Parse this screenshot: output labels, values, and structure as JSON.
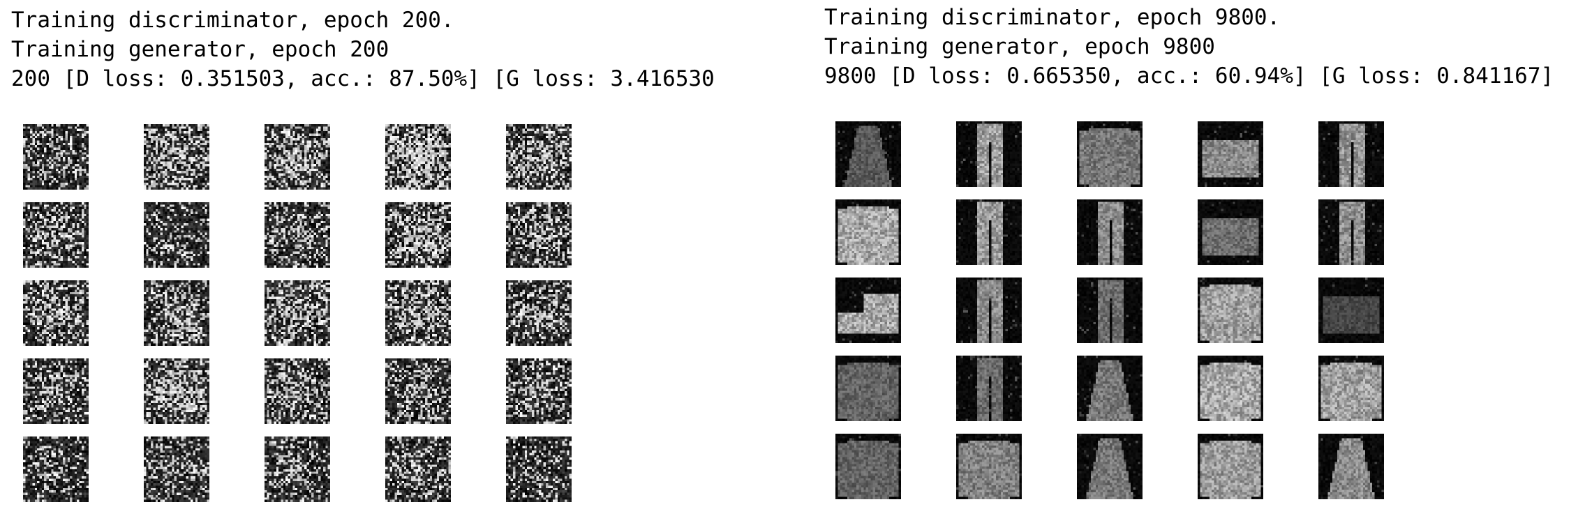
{
  "panels": [
    {
      "log_lines": [
        "Training discriminator, epoch 200.",
        "Training generator, epoch 200",
        "200 [D loss: 0.351503, acc.: 87.50%] [G loss: 3.416530"
      ],
      "grid": {
        "rows": 5,
        "cols": 5,
        "colormap": [
          "#000000",
          "#ffffff"
        ],
        "samples": [
          {
            "kind": "noise",
            "brightness": 0.35
          },
          {
            "kind": "noise",
            "brightness": 0.55
          },
          {
            "kind": "noise",
            "brightness": 0.5
          },
          {
            "kind": "noise",
            "brightness": 0.72
          },
          {
            "kind": "noise",
            "brightness": 0.5
          },
          {
            "kind": "noise",
            "brightness": 0.45
          },
          {
            "kind": "noise",
            "brightness": 0.3
          },
          {
            "kind": "noise",
            "brightness": 0.45
          },
          {
            "kind": "noise",
            "brightness": 0.55
          },
          {
            "kind": "noise",
            "brightness": 0.42
          },
          {
            "kind": "noise",
            "brightness": 0.48
          },
          {
            "kind": "noise",
            "brightness": 0.45
          },
          {
            "kind": "noise",
            "brightness": 0.5
          },
          {
            "kind": "noise",
            "brightness": 0.55
          },
          {
            "kind": "noise",
            "brightness": 0.42
          },
          {
            "kind": "noise",
            "brightness": 0.38
          },
          {
            "kind": "noise",
            "brightness": 0.62
          },
          {
            "kind": "noise",
            "brightness": 0.5
          },
          {
            "kind": "noise",
            "brightness": 0.4
          },
          {
            "kind": "noise",
            "brightness": 0.4
          },
          {
            "kind": "noise",
            "brightness": 0.3
          },
          {
            "kind": "noise",
            "brightness": 0.35
          },
          {
            "kind": "noise",
            "brightness": 0.4
          },
          {
            "kind": "noise",
            "brightness": 0.38
          },
          {
            "kind": "noise",
            "brightness": 0.32
          }
        ]
      }
    },
    {
      "log_lines": [
        "Training discriminator, epoch 9800.",
        "Training generator, epoch 9800",
        "9800 [D loss: 0.665350, acc.: 60.94%] [G loss: 0.841167]"
      ],
      "grid": {
        "rows": 5,
        "cols": 5,
        "colormap": [
          "#000000",
          "#ffffff"
        ],
        "samples": [
          {
            "kind": "dress",
            "brightness": 0.45
          },
          {
            "kind": "trouser",
            "brightness": 0.8
          },
          {
            "kind": "shirt",
            "brightness": 0.6
          },
          {
            "kind": "bag",
            "brightness": 0.7
          },
          {
            "kind": "trouser",
            "brightness": 0.75
          },
          {
            "kind": "shirt",
            "brightness": 0.85
          },
          {
            "kind": "trouser",
            "brightness": 0.78
          },
          {
            "kind": "trouser",
            "brightness": 0.7
          },
          {
            "kind": "bag",
            "brightness": 0.55
          },
          {
            "kind": "trouser",
            "brightness": 0.72
          },
          {
            "kind": "shoe",
            "brightness": 0.85
          },
          {
            "kind": "trouser",
            "brightness": 0.7
          },
          {
            "kind": "trouser",
            "brightness": 0.55
          },
          {
            "kind": "pullover",
            "brightness": 0.8
          },
          {
            "kind": "bag",
            "brightness": 0.35
          },
          {
            "kind": "shirt",
            "brightness": 0.5
          },
          {
            "kind": "trouser",
            "brightness": 0.55
          },
          {
            "kind": "dress",
            "brightness": 0.6
          },
          {
            "kind": "pullover",
            "brightness": 0.85
          },
          {
            "kind": "shirt",
            "brightness": 0.8
          },
          {
            "kind": "pullover",
            "brightness": 0.5
          },
          {
            "kind": "pullover",
            "brightness": 0.65
          },
          {
            "kind": "dress",
            "brightness": 0.6
          },
          {
            "kind": "pullover",
            "brightness": 0.78
          },
          {
            "kind": "dress",
            "brightness": 0.7
          }
        ]
      }
    }
  ]
}
